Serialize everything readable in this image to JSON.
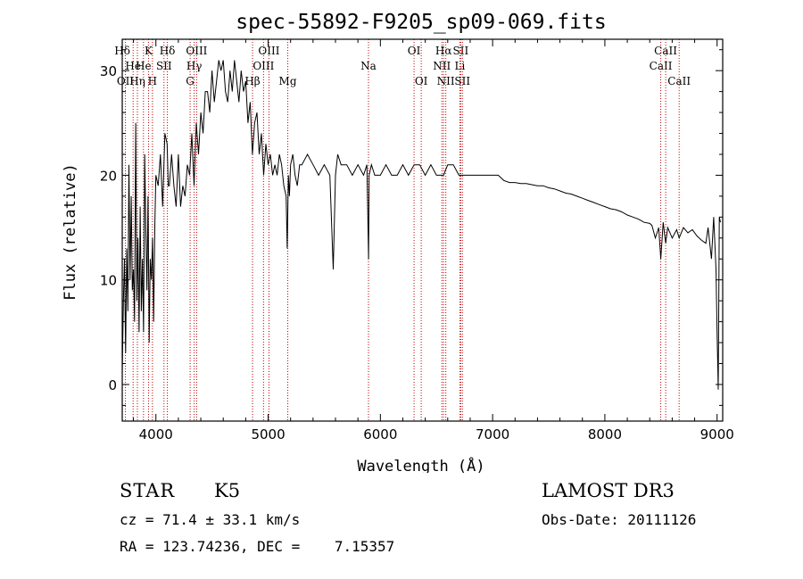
{
  "chart_data": {
    "type": "line",
    "title": "spec-55892-F9205_sp09-069.fits",
    "xlabel": "Wavelength (Å)",
    "ylabel": "Flux (relative)",
    "xlim": [
      3700,
      9050
    ],
    "ylim": [
      -3.5,
      33
    ],
    "x_ticks": [
      4000,
      5000,
      6000,
      7000,
      8000,
      9000
    ],
    "y_ticks": [
      0,
      10,
      20,
      30
    ],
    "x_tick_labels": [
      "4000",
      "5000",
      "6000",
      "7000",
      "8000",
      "9000"
    ],
    "y_tick_labels": [
      "0",
      "10",
      "20",
      "30"
    ],
    "series": [
      {
        "name": "spectrum",
        "x": [
          3700,
          3710,
          3720,
          3730,
          3740,
          3750,
          3760,
          3770,
          3780,
          3790,
          3800,
          3810,
          3820,
          3830,
          3840,
          3850,
          3860,
          3870,
          3880,
          3890,
          3900,
          3910,
          3920,
          3930,
          3940,
          3950,
          3960,
          3970,
          3980,
          3990,
          4000,
          4020,
          4040,
          4060,
          4080,
          4100,
          4110,
          4120,
          4140,
          4160,
          4180,
          4200,
          4220,
          4240,
          4260,
          4280,
          4300,
          4320,
          4340,
          4360,
          4380,
          4400,
          4420,
          4440,
          4460,
          4480,
          4500,
          4520,
          4540,
          4560,
          4580,
          4600,
          4620,
          4640,
          4660,
          4680,
          4700,
          4720,
          4740,
          4760,
          4780,
          4800,
          4820,
          4840,
          4860,
          4880,
          4900,
          4920,
          4940,
          4960,
          4980,
          5000,
          5020,
          5040,
          5060,
          5080,
          5100,
          5120,
          5140,
          5160,
          5170,
          5180,
          5190,
          5200,
          5220,
          5240,
          5260,
          5280,
          5300,
          5350,
          5400,
          5450,
          5500,
          5550,
          5580,
          5600,
          5620,
          5650,
          5700,
          5750,
          5800,
          5850,
          5880,
          5895,
          5900,
          5920,
          5950,
          6000,
          6050,
          6100,
          6150,
          6200,
          6250,
          6300,
          6350,
          6400,
          6450,
          6500,
          6550,
          6563,
          6600,
          6650,
          6700,
          6750,
          6800,
          6850,
          6900,
          6950,
          7000,
          7050,
          7100,
          7150,
          7200,
          7250,
          7300,
          7350,
          7400,
          7450,
          7500,
          7550,
          7600,
          7650,
          7700,
          7750,
          7800,
          7850,
          7900,
          7950,
          8000,
          8050,
          8100,
          8150,
          8200,
          8250,
          8300,
          8350,
          8400,
          8420,
          8450,
          8480,
          8498,
          8520,
          8542,
          8560,
          8600,
          8640,
          8662,
          8700,
          8740,
          8780,
          8820,
          8860,
          8900,
          8920,
          8950,
          8970,
          8990,
          9000,
          9010,
          9020,
          9030
        ],
        "values": [
          1,
          8,
          12,
          3,
          13,
          7,
          21,
          10,
          18,
          9,
          11,
          6,
          25,
          8,
          14,
          5,
          17,
          7,
          12,
          5,
          22,
          15,
          9,
          18,
          4,
          12,
          10,
          14,
          6,
          15,
          20,
          19,
          22,
          17,
          24,
          23,
          19,
          19,
          22,
          19,
          17,
          22,
          17,
          19,
          18,
          21,
          20,
          24,
          19,
          25,
          22,
          26,
          24,
          28,
          28,
          26,
          30,
          27,
          29,
          31,
          30,
          31,
          28,
          27,
          30,
          28,
          31,
          29,
          27,
          30,
          28,
          29,
          25,
          27,
          22,
          25,
          26,
          22,
          24,
          20,
          23,
          21,
          22,
          20,
          21,
          20,
          22,
          21,
          19,
          18,
          13,
          20,
          18,
          21,
          22,
          20,
          19,
          21,
          21,
          22,
          21,
          20,
          21,
          20,
          11,
          20,
          22,
          21,
          21,
          20,
          21,
          20,
          21,
          12,
          20,
          21,
          20,
          20,
          21,
          20,
          20,
          21,
          20,
          21,
          21,
          20,
          21,
          20,
          20,
          20,
          21,
          21,
          20,
          20,
          20,
          20,
          20,
          20,
          20,
          20,
          19.5,
          19.3,
          19.3,
          19.2,
          19.2,
          19.1,
          19,
          19,
          18.8,
          18.7,
          18.5,
          18.3,
          18.2,
          18,
          17.8,
          17.6,
          17.4,
          17.2,
          17,
          16.8,
          16.7,
          16.5,
          16.2,
          16,
          15.8,
          15.5,
          15.4,
          15.2,
          14,
          15,
          12,
          15.5,
          13.5,
          15,
          14,
          14.8,
          14,
          15,
          14.5,
          14.8,
          14.2,
          13.8,
          13.5,
          15,
          12,
          16,
          11,
          5,
          -0.5,
          16,
          15.5
        ]
      }
    ],
    "line_markers": [
      {
        "label": "Hδ",
        "wave": 3701,
        "row": 1
      },
      {
        "label": "OII",
        "wave": 3728,
        "row": 3
      },
      {
        "label": "He",
        "wave": 3797,
        "row": 2
      },
      {
        "label": "Hη",
        "wave": 3835,
        "row": 3
      },
      {
        "label": "K",
        "wave": 3934,
        "row": 1
      },
      {
        "label": "H",
        "wave": 3969,
        "row": 3
      },
      {
        "label": "He",
        "wave": 3889,
        "row": 2
      },
      {
        "label": "SII",
        "wave": 4072,
        "row": 2
      },
      {
        "label": "Hδ",
        "wave": 4102,
        "row": 1
      },
      {
        "label": "G",
        "wave": 4305,
        "row": 3
      },
      {
        "label": "Hγ",
        "wave": 4341,
        "row": 2
      },
      {
        "label": "OIII",
        "wave": 4363,
        "row": 1
      },
      {
        "label": "Hβ",
        "wave": 4861,
        "row": 3
      },
      {
        "label": "OIII",
        "wave": 4959,
        "row": 2
      },
      {
        "label": "OIII",
        "wave": 5007,
        "row": 1
      },
      {
        "label": "Mg",
        "wave": 5175,
        "row": 3
      },
      {
        "label": "Na",
        "wave": 5894,
        "row": 2
      },
      {
        "label": "OI",
        "wave": 6300,
        "row": 1
      },
      {
        "label": "OI",
        "wave": 6364,
        "row": 3
      },
      {
        "label": "NII",
        "wave": 6548,
        "row": 2
      },
      {
        "label": "Hα",
        "wave": 6563,
        "row": 1
      },
      {
        "label": "NII",
        "wave": 6583,
        "row": 3
      },
      {
        "label": "Li",
        "wave": 6708,
        "row": 2
      },
      {
        "label": "SII",
        "wave": 6716,
        "row": 1
      },
      {
        "label": "SII",
        "wave": 6731,
        "row": 3
      },
      {
        "label": "CaII",
        "wave": 8498,
        "row": 2
      },
      {
        "label": "CaII",
        "wave": 8542,
        "row": 1
      },
      {
        "label": "CaII",
        "wave": 8662,
        "row": 3
      }
    ]
  },
  "footer": {
    "object_class": "STAR",
    "subclass": "K5",
    "survey": "LAMOST DR3",
    "cz": "cz = 71.4 ± 33.1 km/s",
    "obs_date": "Obs-Date: 20111126",
    "radec": "RA = 123.74236, DEC =    7.15357"
  },
  "colors": {
    "spectrum": "#000000",
    "line_marker": "#c00000",
    "axis": "#000000"
  }
}
